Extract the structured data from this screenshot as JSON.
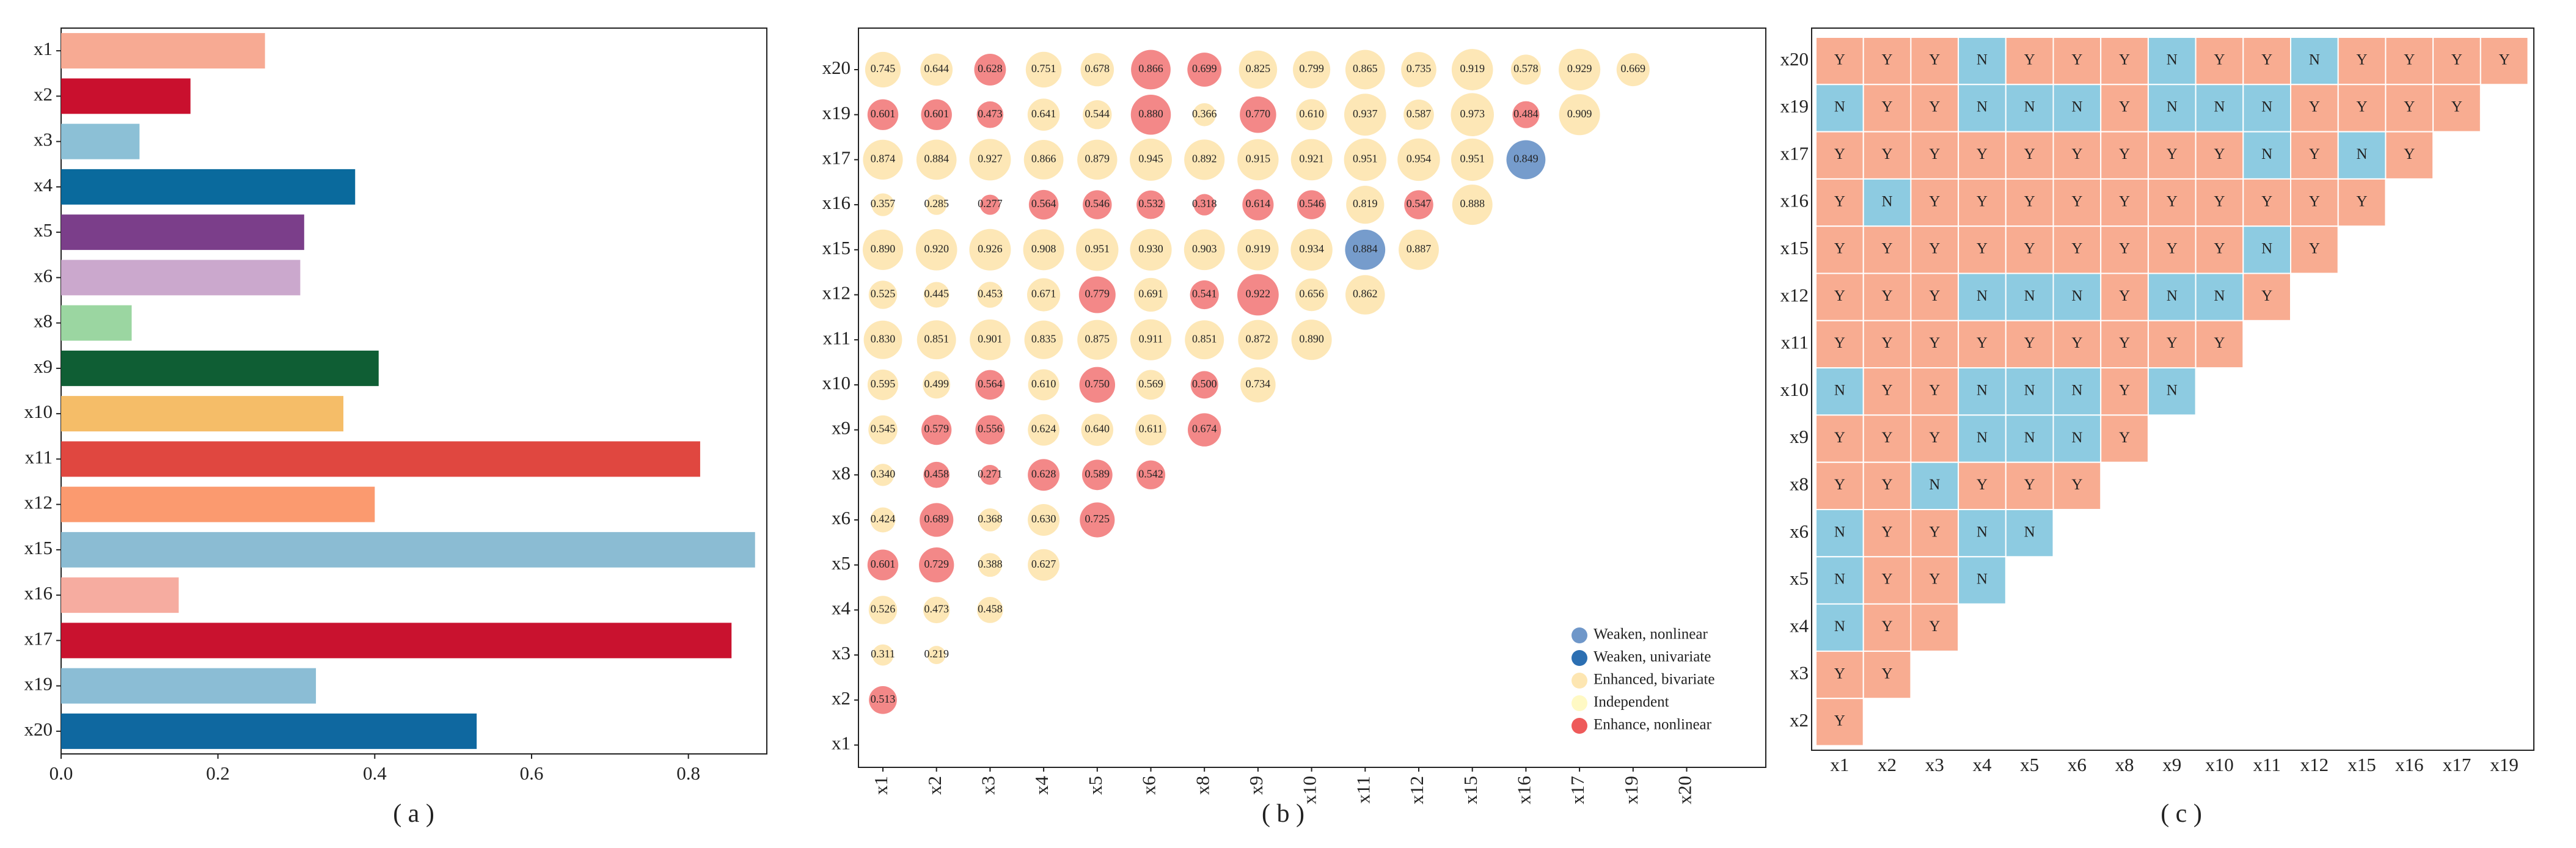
{
  "colors": {
    "bar_palette": [
      "#f7aa93",
      "#c9102e",
      "#8cc0d6",
      "#0a6a9d",
      "#7b3e8a",
      "#cba8cd",
      "#9bd6a1",
      "#0f5e34",
      "#f5bd68",
      "#e04740",
      "#fb9a6f",
      "#8bbcd3",
      "#f6aca0",
      "#c9122f",
      "#8bbdd5",
      "#0f68a0"
    ],
    "weaken_nonlinear": "#6f97c9",
    "weaken_univariate": "#2c6fb2",
    "enhanced_bivariate": "#fde6b2",
    "independent": "#fff9c4",
    "enhance_nonlinear": "#ee5a5a",
    "cell_Y": "#f8ac91",
    "cell_N": "#8dcbe1"
  },
  "chart_data": [
    {
      "id": "a",
      "type": "bar",
      "orientation": "horizontal",
      "caption": "( a )",
      "categories": [
        "x1",
        "x2",
        "x3",
        "x4",
        "x5",
        "x6",
        "x8",
        "x9",
        "x10",
        "x11",
        "x12",
        "x15",
        "x16",
        "x17",
        "x19",
        "x20"
      ],
      "values": [
        0.26,
        0.165,
        0.1,
        0.375,
        0.31,
        0.305,
        0.09,
        0.405,
        0.36,
        0.815,
        0.4,
        0.885,
        0.15,
        0.855,
        0.325,
        0.53
      ],
      "xlim": [
        0,
        0.9
      ],
      "xticks": [
        0.0,
        0.2,
        0.4,
        0.6,
        0.8
      ],
      "xtick_labels": [
        "0.0",
        "0.2",
        "0.4",
        "0.6",
        "0.8"
      ]
    },
    {
      "id": "b",
      "type": "scatter",
      "subtype": "bubble-triangle-matrix",
      "caption": "( b )",
      "y_labels": [
        "x20",
        "x19",
        "x17",
        "x16",
        "x15",
        "x12",
        "x11",
        "x10",
        "x9",
        "x8",
        "x6",
        "x5",
        "x4",
        "x3",
        "x2",
        "x1"
      ],
      "x_labels": [
        "x1",
        "x2",
        "x3",
        "x4",
        "x5",
        "x6",
        "x8",
        "x9",
        "x10",
        "x11",
        "x12",
        "x15",
        "x16",
        "x17",
        "x19",
        "x20"
      ],
      "rows": [
        {
          "y": "x20",
          "values": [
            0.745,
            0.644,
            0.628,
            0.751,
            0.678,
            0.866,
            0.699,
            0.825,
            0.799,
            0.865,
            0.735,
            0.919,
            0.578,
            0.929,
            0.669
          ],
          "types": [
            "E",
            "E",
            "N",
            "E",
            "E",
            "N",
            "N",
            "E",
            "E",
            "E",
            "E",
            "E",
            "E",
            "E",
            "E"
          ]
        },
        {
          "y": "x19",
          "values": [
            0.601,
            0.601,
            0.473,
            0.641,
            0.544,
            0.88,
            0.366,
            0.77,
            0.61,
            0.937,
            0.587,
            0.973,
            0.484,
            0.909
          ],
          "types": [
            "N",
            "N",
            "N",
            "E",
            "E",
            "N",
            "E",
            "N",
            "E",
            "E",
            "E",
            "E",
            "N",
            "E"
          ]
        },
        {
          "y": "x17",
          "values": [
            0.874,
            0.884,
            0.927,
            0.866,
            0.879,
            0.945,
            0.892,
            0.915,
            0.921,
            0.951,
            0.954,
            0.951,
            0.849
          ],
          "types": [
            "E",
            "E",
            "E",
            "E",
            "E",
            "E",
            "E",
            "E",
            "E",
            "E",
            "E",
            "E",
            "W"
          ]
        },
        {
          "y": "x16",
          "values": [
            0.357,
            0.285,
            0.277,
            0.564,
            0.546,
            0.532,
            0.318,
            0.614,
            0.546,
            0.819,
            0.547,
            0.888
          ],
          "types": [
            "E",
            "E",
            "N",
            "N",
            "N",
            "N",
            "N",
            "N",
            "N",
            "E",
            "N",
            "E"
          ]
        },
        {
          "y": "x15",
          "values": [
            0.89,
            0.92,
            0.926,
            0.908,
            0.951,
            0.93,
            0.903,
            0.919,
            0.934,
            0.884,
            0.887
          ],
          "types": [
            "E",
            "E",
            "E",
            "E",
            "E",
            "E",
            "E",
            "E",
            "E",
            "W",
            "E"
          ]
        },
        {
          "y": "x12",
          "values": [
            0.525,
            0.445,
            0.453,
            0.671,
            0.779,
            0.691,
            0.541,
            0.922,
            0.656,
            0.862
          ],
          "types": [
            "E",
            "E",
            "E",
            "E",
            "N",
            "E",
            "N",
            "N",
            "E",
            "E"
          ]
        },
        {
          "y": "x11",
          "values": [
            0.83,
            0.851,
            0.901,
            0.835,
            0.875,
            0.911,
            0.851,
            0.872,
            0.89
          ],
          "types": [
            "E",
            "E",
            "E",
            "E",
            "E",
            "E",
            "E",
            "E",
            "E"
          ]
        },
        {
          "y": "x10",
          "values": [
            0.595,
            0.499,
            0.564,
            0.61,
            0.75,
            0.569,
            0.5,
            0.734
          ],
          "types": [
            "E",
            "E",
            "N",
            "E",
            "N",
            "E",
            "N",
            "E"
          ]
        },
        {
          "y": "x9",
          "values": [
            0.545,
            0.579,
            0.556,
            0.624,
            0.64,
            0.611,
            0.674
          ],
          "types": [
            "E",
            "N",
            "N",
            "E",
            "E",
            "E",
            "N"
          ]
        },
        {
          "y": "x8",
          "values": [
            0.34,
            0.458,
            0.271,
            0.628,
            0.589,
            0.542
          ],
          "types": [
            "E",
            "N",
            "N",
            "N",
            "N",
            "N"
          ]
        },
        {
          "y": "x6",
          "values": [
            0.424,
            0.689,
            0.368,
            0.63,
            0.725
          ],
          "types": [
            "E",
            "N",
            "E",
            "E",
            "N"
          ]
        },
        {
          "y": "x5",
          "values": [
            0.601,
            0.729,
            0.388,
            0.627
          ],
          "types": [
            "N",
            "N",
            "E",
            "E"
          ]
        },
        {
          "y": "x4",
          "values": [
            0.526,
            0.473,
            0.458
          ],
          "types": [
            "E",
            "E",
            "E"
          ]
        },
        {
          "y": "x3",
          "values": [
            0.311,
            0.219
          ],
          "types": [
            "E",
            "E"
          ]
        },
        {
          "y": "x2",
          "values": [
            0.513
          ],
          "types": [
            "N"
          ]
        }
      ],
      "legend": {
        "position": "bottom-right",
        "items": [
          {
            "label": "Weaken, nonlinear",
            "color_key": "weaken_nonlinear"
          },
          {
            "label": "Weaken, univariate",
            "color_key": "weaken_univariate"
          },
          {
            "label": "Enhanced, bivariate",
            "color_key": "enhanced_bivariate"
          },
          {
            "label": "Independent",
            "color_key": "independent"
          },
          {
            "label": "Enhance, nonlinear",
            "color_key": "enhance_nonlinear"
          }
        ]
      }
    },
    {
      "id": "c",
      "type": "heatmap",
      "caption": "( c )",
      "y_labels": [
        "x20",
        "x19",
        "x17",
        "x16",
        "x15",
        "x12",
        "x11",
        "x10",
        "x9",
        "x8",
        "x6",
        "x5",
        "x4",
        "x3",
        "x2"
      ],
      "x_labels": [
        "x1",
        "x2",
        "x3",
        "x4",
        "x5",
        "x6",
        "x8",
        "x9",
        "x10",
        "x11",
        "x12",
        "x15",
        "x16",
        "x17",
        "x19"
      ],
      "rows": [
        [
          "Y",
          "Y",
          "Y",
          "N",
          "Y",
          "Y",
          "Y",
          "N",
          "Y",
          "Y",
          "N",
          "Y",
          "Y",
          "Y",
          "Y"
        ],
        [
          "N",
          "Y",
          "Y",
          "N",
          "N",
          "N",
          "Y",
          "N",
          "N",
          "N",
          "Y",
          "Y",
          "Y",
          "Y"
        ],
        [
          "Y",
          "Y",
          "Y",
          "Y",
          "Y",
          "Y",
          "Y",
          "Y",
          "Y",
          "N",
          "Y",
          "N",
          "Y"
        ],
        [
          "Y",
          "N",
          "Y",
          "Y",
          "Y",
          "Y",
          "Y",
          "Y",
          "Y",
          "Y",
          "Y",
          "Y"
        ],
        [
          "Y",
          "Y",
          "Y",
          "Y",
          "Y",
          "Y",
          "Y",
          "Y",
          "Y",
          "N",
          "Y"
        ],
        [
          "Y",
          "Y",
          "Y",
          "N",
          "N",
          "N",
          "Y",
          "N",
          "N",
          "Y"
        ],
        [
          "Y",
          "Y",
          "Y",
          "Y",
          "Y",
          "Y",
          "Y",
          "Y",
          "Y"
        ],
        [
          "N",
          "Y",
          "Y",
          "N",
          "N",
          "N",
          "Y",
          "N"
        ],
        [
          "Y",
          "Y",
          "Y",
          "N",
          "N",
          "N",
          "Y"
        ],
        [
          "Y",
          "Y",
          "N",
          "Y",
          "Y",
          "Y"
        ],
        [
          "N",
          "Y",
          "Y",
          "N",
          "N"
        ],
        [
          "N",
          "Y",
          "Y",
          "N"
        ],
        [
          "N",
          "Y",
          "Y"
        ],
        [
          "Y",
          "Y"
        ],
        [
          "Y"
        ]
      ]
    }
  ]
}
